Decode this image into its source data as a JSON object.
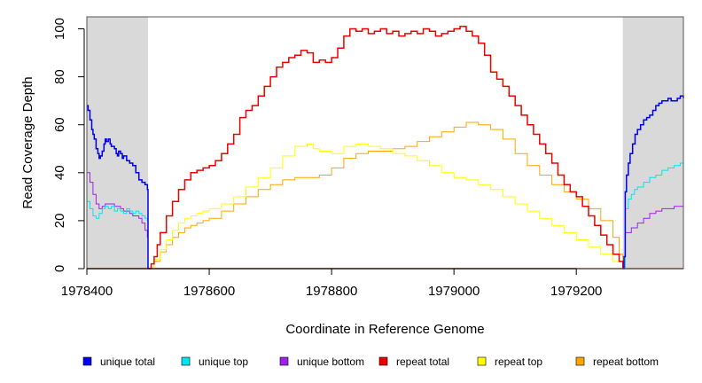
{
  "chart_data": {
    "type": "line",
    "title": "",
    "xlabel": "Coordinate in Reference Genome",
    "ylabel": "Read Coverage Depth",
    "xlim": [
      1978400,
      1979375
    ],
    "ylim": [
      0,
      105
    ],
    "x_ticks": [
      1978400,
      1978600,
      1978800,
      1979000,
      1979200
    ],
    "x_tick_labels": [
      "1978400",
      "1978600",
      "1978800",
      "1979000",
      "1979200"
    ],
    "y_ticks": [
      0,
      20,
      40,
      60,
      80,
      100
    ],
    "y_tick_labels": [
      "0",
      "20",
      "40",
      "60",
      "80",
      "100"
    ],
    "shaded_regions": [
      [
        1978400,
        1978500
      ],
      [
        1979276,
        1979375
      ]
    ],
    "grid": false,
    "legend_position": "bottom",
    "series": [
      {
        "name": "unique total",
        "color": "#0000EE",
        "points": [
          [
            1978400,
            68
          ],
          [
            1978402,
            66
          ],
          [
            1978405,
            62
          ],
          [
            1978408,
            58
          ],
          [
            1978410,
            56
          ],
          [
            1978412,
            54
          ],
          [
            1978415,
            50
          ],
          [
            1978418,
            48
          ],
          [
            1978420,
            46
          ],
          [
            1978422,
            47
          ],
          [
            1978425,
            49
          ],
          [
            1978428,
            52
          ],
          [
            1978430,
            54
          ],
          [
            1978432,
            53
          ],
          [
            1978435,
            54
          ],
          [
            1978438,
            52
          ],
          [
            1978440,
            51
          ],
          [
            1978445,
            50
          ],
          [
            1978448,
            48
          ],
          [
            1978450,
            47
          ],
          [
            1978452,
            49
          ],
          [
            1978455,
            48
          ],
          [
            1978458,
            46
          ],
          [
            1978460,
            47
          ],
          [
            1978465,
            45
          ],
          [
            1978470,
            44
          ],
          [
            1978475,
            43
          ],
          [
            1978480,
            40
          ],
          [
            1978485,
            37
          ],
          [
            1978490,
            36
          ],
          [
            1978495,
            35
          ],
          [
            1978499,
            33
          ],
          [
            1978500,
            0
          ],
          [
            1979276,
            0
          ],
          [
            1979278,
            5
          ],
          [
            1979280,
            32
          ],
          [
            1979282,
            39
          ],
          [
            1979285,
            44
          ],
          [
            1979288,
            48
          ],
          [
            1979292,
            52
          ],
          [
            1979296,
            56
          ],
          [
            1979300,
            58
          ],
          [
            1979305,
            60
          ],
          [
            1979310,
            62
          ],
          [
            1979315,
            63
          ],
          [
            1979320,
            64
          ],
          [
            1979325,
            66
          ],
          [
            1979330,
            68
          ],
          [
            1979335,
            69
          ],
          [
            1979340,
            70
          ],
          [
            1979345,
            70
          ],
          [
            1979350,
            71
          ],
          [
            1979355,
            70
          ],
          [
            1979360,
            70
          ],
          [
            1979365,
            71
          ],
          [
            1979370,
            72
          ],
          [
            1979375,
            71
          ]
        ]
      },
      {
        "name": "unique top",
        "color": "#00E5EE",
        "points": [
          [
            1978400,
            28
          ],
          [
            1978405,
            25
          ],
          [
            1978410,
            22
          ],
          [
            1978415,
            21
          ],
          [
            1978420,
            23
          ],
          [
            1978425,
            25
          ],
          [
            1978430,
            26
          ],
          [
            1978435,
            25
          ],
          [
            1978440,
            26
          ],
          [
            1978445,
            24
          ],
          [
            1978450,
            25
          ],
          [
            1978455,
            24
          ],
          [
            1978460,
            23
          ],
          [
            1978465,
            25
          ],
          [
            1978470,
            24
          ],
          [
            1978475,
            23
          ],
          [
            1978480,
            24
          ],
          [
            1978485,
            23
          ],
          [
            1978490,
            22
          ],
          [
            1978495,
            21
          ],
          [
            1978499,
            20
          ],
          [
            1978500,
            0
          ],
          [
            1979276,
            0
          ],
          [
            1979280,
            25
          ],
          [
            1979285,
            29
          ],
          [
            1979290,
            31
          ],
          [
            1979295,
            33
          ],
          [
            1979300,
            34
          ],
          [
            1979310,
            36
          ],
          [
            1979320,
            38
          ],
          [
            1979330,
            39
          ],
          [
            1979340,
            41
          ],
          [
            1979350,
            42
          ],
          [
            1979360,
            43
          ],
          [
            1979370,
            44
          ],
          [
            1979375,
            45
          ]
        ]
      },
      {
        "name": "unique bottom",
        "color": "#A020F0",
        "points": [
          [
            1978400,
            40
          ],
          [
            1978405,
            36
          ],
          [
            1978410,
            31
          ],
          [
            1978415,
            27
          ],
          [
            1978420,
            25
          ],
          [
            1978425,
            26
          ],
          [
            1978430,
            27
          ],
          [
            1978435,
            27
          ],
          [
            1978440,
            27
          ],
          [
            1978445,
            26
          ],
          [
            1978450,
            26
          ],
          [
            1978455,
            25
          ],
          [
            1978460,
            24
          ],
          [
            1978465,
            24
          ],
          [
            1978470,
            23
          ],
          [
            1978475,
            22
          ],
          [
            1978480,
            22
          ],
          [
            1978485,
            21
          ],
          [
            1978490,
            19
          ],
          [
            1978495,
            16
          ],
          [
            1978499,
            13
          ],
          [
            1978500,
            0
          ],
          [
            1979276,
            0
          ],
          [
            1979280,
            15
          ],
          [
            1979290,
            17
          ],
          [
            1979300,
            19
          ],
          [
            1979310,
            21
          ],
          [
            1979320,
            23
          ],
          [
            1979330,
            24
          ],
          [
            1979340,
            25
          ],
          [
            1979350,
            25
          ],
          [
            1979360,
            26
          ],
          [
            1979370,
            26
          ],
          [
            1979375,
            27
          ]
        ]
      },
      {
        "name": "repeat total",
        "color": "#EE0000",
        "points": [
          [
            1978500,
            0
          ],
          [
            1978505,
            2
          ],
          [
            1978510,
            5
          ],
          [
            1978515,
            10
          ],
          [
            1978520,
            15
          ],
          [
            1978530,
            22
          ],
          [
            1978540,
            28
          ],
          [
            1978550,
            33
          ],
          [
            1978560,
            37
          ],
          [
            1978570,
            40
          ],
          [
            1978580,
            41
          ],
          [
            1978590,
            42
          ],
          [
            1978600,
            43
          ],
          [
            1978610,
            45
          ],
          [
            1978620,
            48
          ],
          [
            1978630,
            52
          ],
          [
            1978640,
            56
          ],
          [
            1978650,
            63
          ],
          [
            1978660,
            66
          ],
          [
            1978670,
            68
          ],
          [
            1978680,
            72
          ],
          [
            1978690,
            76
          ],
          [
            1978700,
            80
          ],
          [
            1978710,
            84
          ],
          [
            1978720,
            86
          ],
          [
            1978730,
            88
          ],
          [
            1978740,
            89
          ],
          [
            1978750,
            91
          ],
          [
            1978760,
            90
          ],
          [
            1978770,
            86
          ],
          [
            1978780,
            87
          ],
          [
            1978790,
            86
          ],
          [
            1978800,
            88
          ],
          [
            1978810,
            92
          ],
          [
            1978820,
            97
          ],
          [
            1978830,
            100
          ],
          [
            1978840,
            99
          ],
          [
            1978850,
            100
          ],
          [
            1978860,
            98
          ],
          [
            1978870,
            99
          ],
          [
            1978880,
            100
          ],
          [
            1978890,
            98
          ],
          [
            1978900,
            99
          ],
          [
            1978910,
            97
          ],
          [
            1978920,
            98
          ],
          [
            1978930,
            99
          ],
          [
            1978940,
            98
          ],
          [
            1978950,
            100
          ],
          [
            1978960,
            99
          ],
          [
            1978970,
            97
          ],
          [
            1978980,
            98
          ],
          [
            1978990,
            99
          ],
          [
            1979000,
            100
          ],
          [
            1979010,
            101
          ],
          [
            1979020,
            99
          ],
          [
            1979030,
            97
          ],
          [
            1979040,
            94
          ],
          [
            1979050,
            89
          ],
          [
            1979060,
            82
          ],
          [
            1979070,
            79
          ],
          [
            1979080,
            76
          ],
          [
            1979090,
            72
          ],
          [
            1979100,
            68
          ],
          [
            1979110,
            64
          ],
          [
            1979120,
            60
          ],
          [
            1979130,
            56
          ],
          [
            1979140,
            52
          ],
          [
            1979150,
            48
          ],
          [
            1979160,
            44
          ],
          [
            1979170,
            39
          ],
          [
            1979180,
            35
          ],
          [
            1979190,
            32
          ],
          [
            1979200,
            30
          ],
          [
            1979210,
            26
          ],
          [
            1979220,
            22
          ],
          [
            1979230,
            18
          ],
          [
            1979240,
            14
          ],
          [
            1979250,
            10
          ],
          [
            1979260,
            6
          ],
          [
            1979270,
            3
          ],
          [
            1979276,
            0
          ]
        ]
      },
      {
        "name": "repeat top",
        "color": "#FFFF00",
        "points": [
          [
            1978500,
            0
          ],
          [
            1978510,
            4
          ],
          [
            1978520,
            8
          ],
          [
            1978530,
            12
          ],
          [
            1978540,
            16
          ],
          [
            1978550,
            19
          ],
          [
            1978560,
            21
          ],
          [
            1978570,
            22
          ],
          [
            1978580,
            23
          ],
          [
            1978590,
            24
          ],
          [
            1978600,
            25
          ],
          [
            1978620,
            27
          ],
          [
            1978640,
            30
          ],
          [
            1978660,
            34
          ],
          [
            1978680,
            38
          ],
          [
            1978700,
            42
          ],
          [
            1978720,
            47
          ],
          [
            1978740,
            51
          ],
          [
            1978760,
            52
          ],
          [
            1978770,
            50
          ],
          [
            1978780,
            49
          ],
          [
            1978800,
            48
          ],
          [
            1978820,
            51
          ],
          [
            1978840,
            52
          ],
          [
            1978860,
            51
          ],
          [
            1978880,
            50
          ],
          [
            1978900,
            48
          ],
          [
            1978920,
            47
          ],
          [
            1978940,
            45
          ],
          [
            1978960,
            43
          ],
          [
            1978980,
            40
          ],
          [
            1979000,
            38
          ],
          [
            1979020,
            37
          ],
          [
            1979040,
            35
          ],
          [
            1979060,
            33
          ],
          [
            1979080,
            30
          ],
          [
            1979100,
            27
          ],
          [
            1979120,
            24
          ],
          [
            1979140,
            21
          ],
          [
            1979160,
            18
          ],
          [
            1979180,
            15
          ],
          [
            1979200,
            12
          ],
          [
            1979220,
            9
          ],
          [
            1979240,
            6
          ],
          [
            1979260,
            3
          ],
          [
            1979276,
            0
          ]
        ]
      },
      {
        "name": "repeat bottom",
        "color": "#FFA500",
        "points": [
          [
            1978500,
            0
          ],
          [
            1978510,
            3
          ],
          [
            1978520,
            7
          ],
          [
            1978530,
            10
          ],
          [
            1978540,
            13
          ],
          [
            1978550,
            15
          ],
          [
            1978560,
            17
          ],
          [
            1978570,
            18
          ],
          [
            1978580,
            19
          ],
          [
            1978590,
            20
          ],
          [
            1978600,
            21
          ],
          [
            1978620,
            24
          ],
          [
            1978640,
            27
          ],
          [
            1978660,
            30
          ],
          [
            1978680,
            33
          ],
          [
            1978700,
            35
          ],
          [
            1978720,
            37
          ],
          [
            1978740,
            38
          ],
          [
            1978760,
            38
          ],
          [
            1978780,
            39
          ],
          [
            1978800,
            42
          ],
          [
            1978820,
            46
          ],
          [
            1978840,
            48
          ],
          [
            1978860,
            49
          ],
          [
            1978880,
            49
          ],
          [
            1978900,
            50
          ],
          [
            1978920,
            51
          ],
          [
            1978940,
            53
          ],
          [
            1978960,
            55
          ],
          [
            1978980,
            57
          ],
          [
            1979000,
            59
          ],
          [
            1979020,
            61
          ],
          [
            1979040,
            60
          ],
          [
            1979060,
            58
          ],
          [
            1979080,
            54
          ],
          [
            1979100,
            48
          ],
          [
            1979120,
            43
          ],
          [
            1979140,
            39
          ],
          [
            1979160,
            35
          ],
          [
            1979180,
            32
          ],
          [
            1979200,
            29
          ],
          [
            1979220,
            25
          ],
          [
            1979240,
            20
          ],
          [
            1979260,
            13
          ],
          [
            1979270,
            6
          ],
          [
            1979276,
            0
          ]
        ]
      }
    ],
    "flat_zero_series": [
      "unique total",
      "repeat bottom"
    ]
  }
}
